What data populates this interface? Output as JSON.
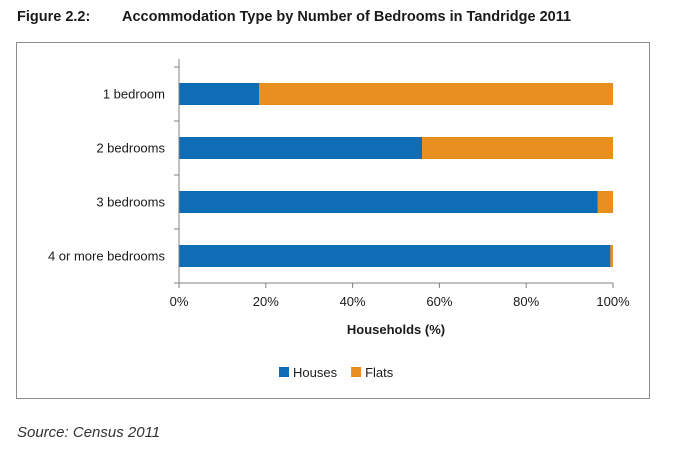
{
  "figure": {
    "number": "Figure 2.2:",
    "title": "Accommodation Type by Number of Bedrooms in Tandridge 2011",
    "source": "Source: Census 2011"
  },
  "colors": {
    "houses": "#0f6db5",
    "flats": "#e98f20",
    "axis": "#808080"
  },
  "chart_data": {
    "type": "bar",
    "orientation": "horizontal",
    "stacked": true,
    "categories": [
      "1 bedroom",
      "2 bedrooms",
      "3 bedrooms",
      "4 or more bedrooms"
    ],
    "series": [
      {
        "name": "Houses",
        "values": [
          18.5,
          56,
          96.5,
          99.4
        ]
      },
      {
        "name": "Flats",
        "values": [
          81.5,
          44,
          3.5,
          0.6
        ]
      }
    ],
    "xlabel": "Households (%)",
    "xlim": [
      0,
      100
    ],
    "xticks": [
      "0%",
      "20%",
      "40%",
      "60%",
      "80%",
      "100%"
    ],
    "grid": false,
    "legend_position": "bottom"
  }
}
